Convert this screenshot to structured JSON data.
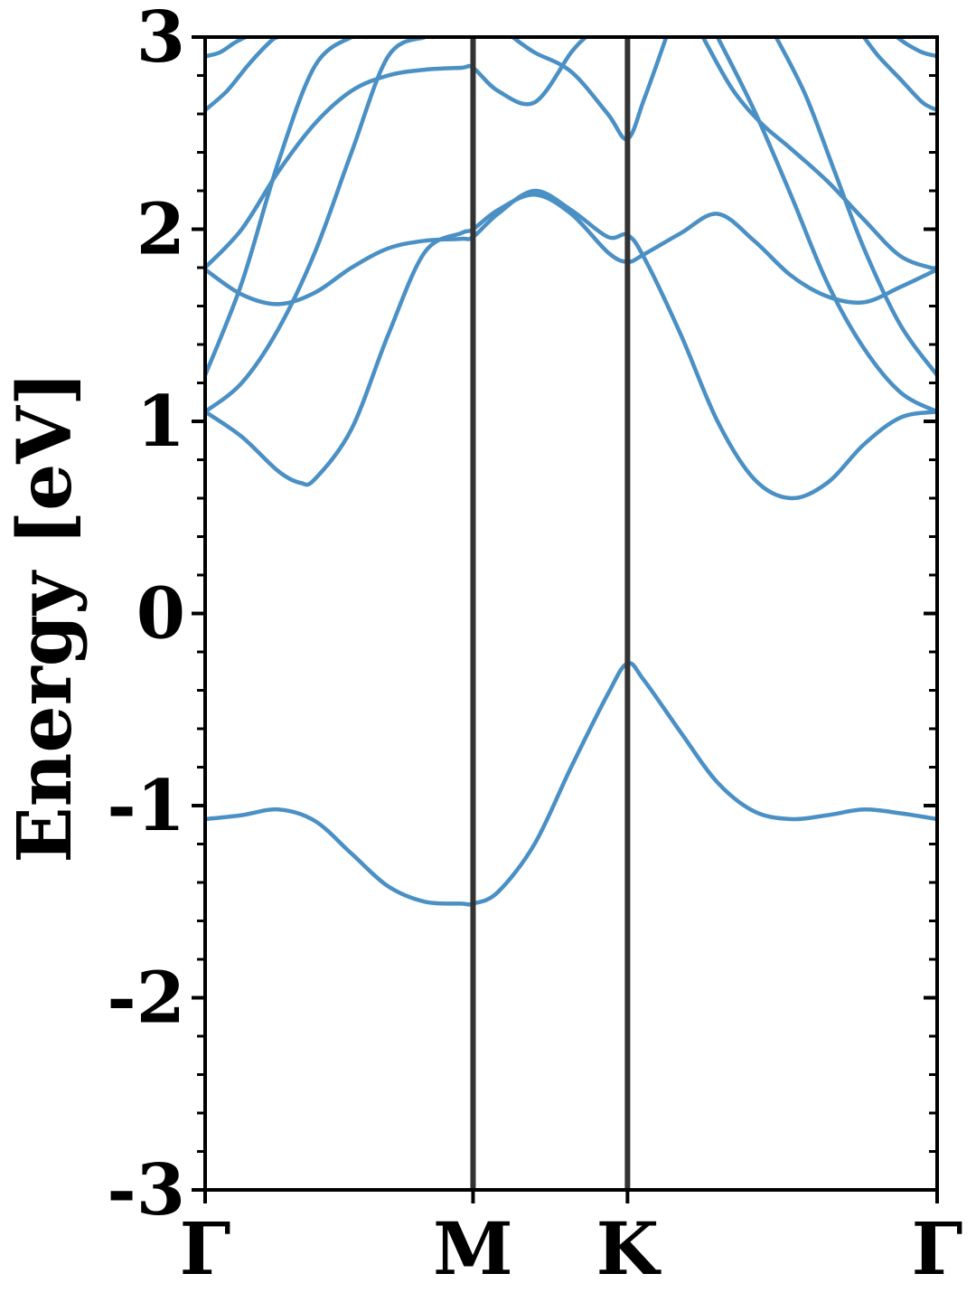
{
  "chart_data": {
    "type": "line",
    "title": "",
    "xlabel": "",
    "ylabel": "Energy [eV]",
    "ylim": [
      -3,
      3
    ],
    "xlim": [
      0,
      1
    ],
    "y_ticks": [
      3,
      2,
      1,
      0,
      -1,
      -2,
      -3
    ],
    "y_tick_labels": [
      "3",
      "2",
      "1",
      "0",
      "-1",
      "-2",
      "-3"
    ],
    "high_symmetry_points": [
      {
        "label": "Γ",
        "x": 0.0
      },
      {
        "label": "M",
        "x": 0.366
      },
      {
        "label": "K",
        "x": 0.577
      },
      {
        "label": "Γ",
        "x": 1.0
      }
    ],
    "vertical_lines_at": [
      0.366,
      0.577
    ],
    "grid": false,
    "legend": "none",
    "line_color": "#4a90c4",
    "series": [
      {
        "x": [
          0,
          0.05,
          0.1,
          0.15,
          0.2,
          0.25,
          0.3,
          0.35,
          0.366,
          0.4,
          0.45,
          0.5,
          0.55,
          0.577,
          0.6,
          0.65,
          0.7,
          0.75,
          0.8,
          0.85,
          0.9,
          0.95,
          1.0
        ],
        "y": [
          -1.07,
          -1.05,
          -1.02,
          -1.08,
          -1.25,
          -1.42,
          -1.5,
          -1.51,
          -1.51,
          -1.45,
          -1.2,
          -0.8,
          -0.42,
          -0.26,
          -0.35,
          -0.62,
          -0.88,
          -1.03,
          -1.07,
          -1.05,
          -1.02,
          -1.04,
          -1.07
        ]
      },
      {
        "x": [
          0,
          0.05,
          0.1,
          0.13,
          0.15,
          0.2,
          0.25,
          0.3,
          0.35,
          0.366,
          0.4,
          0.45,
          0.5,
          0.55,
          0.577,
          0.6,
          0.65,
          0.7,
          0.75,
          0.8,
          0.85,
          0.9,
          0.95,
          1.0
        ],
        "y": [
          1.05,
          0.92,
          0.74,
          0.68,
          0.7,
          0.96,
          1.45,
          1.88,
          1.98,
          2.0,
          2.1,
          2.18,
          2.08,
          1.88,
          1.83,
          1.87,
          1.98,
          2.08,
          1.94,
          1.76,
          1.65,
          1.62,
          1.7,
          1.79
        ]
      },
      {
        "x": [
          0,
          0.05,
          0.1,
          0.15,
          0.2,
          0.25,
          0.3,
          0.35,
          0.366,
          0.4,
          0.45,
          0.5,
          0.55,
          0.577,
          0.6,
          0.65,
          0.7,
          0.75,
          0.8,
          0.85,
          0.9,
          0.95,
          1.0
        ],
        "y": [
          1.79,
          1.66,
          1.61,
          1.67,
          1.8,
          1.9,
          1.94,
          1.95,
          1.96,
          2.08,
          2.2,
          2.1,
          1.96,
          1.97,
          1.85,
          1.45,
          1.0,
          0.7,
          0.6,
          0.68,
          0.88,
          1.02,
          1.05
        ]
      },
      {
        "x": [
          0,
          0.05,
          0.1,
          0.15,
          0.2,
          0.25,
          0.3,
          0.31
        ],
        "y": [
          1.05,
          1.2,
          1.48,
          1.88,
          2.4,
          2.9,
          3.0,
          3.0
        ]
      },
      {
        "x": [
          0.7,
          0.75,
          0.8,
          0.85,
          0.9,
          0.95,
          1.0
        ],
        "y": [
          3.0,
          2.62,
          2.18,
          1.72,
          1.38,
          1.15,
          1.05
        ]
      },
      {
        "x": [
          0,
          0.05,
          0.1,
          0.15,
          0.2,
          0.22
        ],
        "y": [
          1.24,
          1.72,
          2.35,
          2.85,
          3.0,
          3.0
        ]
      },
      {
        "x": [
          0.78,
          0.82,
          0.86,
          0.9,
          0.95,
          1.0
        ],
        "y": [
          3.0,
          2.7,
          2.3,
          1.9,
          1.5,
          1.24
        ]
      },
      {
        "x": [
          0,
          0.05,
          0.1,
          0.15,
          0.2,
          0.25,
          0.3,
          0.35,
          0.366,
          0.4,
          0.45,
          0.5,
          0.52
        ],
        "y": [
          1.8,
          2.0,
          2.3,
          2.55,
          2.72,
          2.8,
          2.83,
          2.84,
          2.84,
          2.72,
          2.66,
          2.92,
          3.0
        ]
      },
      {
        "x": [
          0.68,
          0.72,
          0.76,
          0.8,
          0.85,
          0.9,
          0.95,
          1.0
        ],
        "y": [
          3.0,
          2.73,
          2.55,
          2.42,
          2.25,
          2.05,
          1.86,
          1.79
        ]
      },
      {
        "x": [
          0.42,
          0.45,
          0.5,
          0.55,
          0.577,
          0.6,
          0.63
        ],
        "y": [
          3.0,
          2.92,
          2.82,
          2.6,
          2.47,
          2.68,
          3.0
        ]
      },
      {
        "x": [
          0,
          0.03,
          0.06,
          0.09,
          0.1
        ],
        "y": [
          2.62,
          2.72,
          2.86,
          2.98,
          3.0
        ]
      },
      {
        "x": [
          0.9,
          0.92,
          0.95,
          0.98,
          1.0
        ],
        "y": [
          3.0,
          2.9,
          2.78,
          2.66,
          2.62
        ]
      },
      {
        "x": [
          0,
          0.02,
          0.04,
          0.055
        ],
        "y": [
          2.9,
          2.92,
          2.97,
          3.0
        ]
      },
      {
        "x": [
          0.945,
          0.96,
          0.98,
          1.0
        ],
        "y": [
          3.0,
          2.96,
          2.92,
          2.9
        ]
      }
    ]
  }
}
